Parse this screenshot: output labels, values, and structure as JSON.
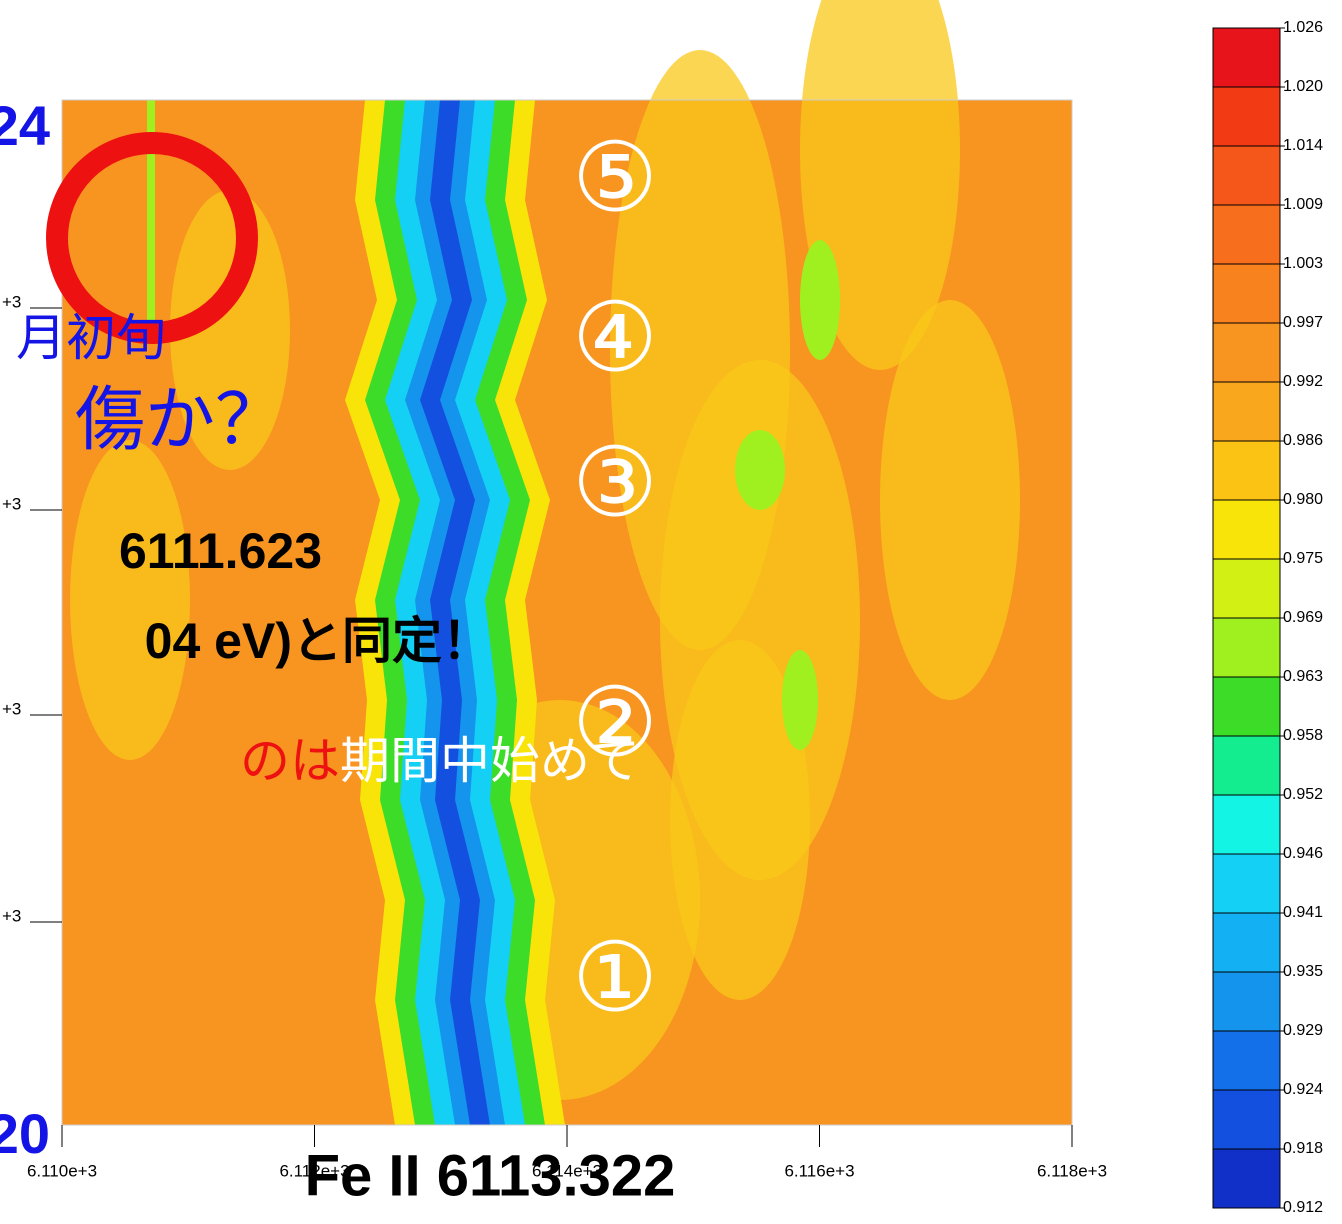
{
  "chart_data": {
    "type": "contour",
    "xlim": [
      6110,
      6118
    ],
    "xticks": [
      {
        "value": 6110,
        "label": "6.110e+3"
      },
      {
        "value": 6112,
        "label": "6.112e+3"
      },
      {
        "value": 6114,
        "label": "6.114e+3"
      },
      {
        "value": 6116,
        "label": "6.116e+3"
      },
      {
        "value": 6118,
        "label": "6.118e+3"
      }
    ],
    "y_tick_labels": [
      "+3",
      "+3",
      "+3",
      "+3"
    ],
    "colorbar": {
      "levels": [
        {
          "value": 1.026,
          "label": "1.026"
        },
        {
          "value": 1.02,
          "label": "1.020"
        },
        {
          "value": 1.014,
          "label": "1.014"
        },
        {
          "value": 1.009,
          "label": "1.009"
        },
        {
          "value": 1.003,
          "label": "1.003"
        },
        {
          "value": 0.997,
          "label": "0.997"
        },
        {
          "value": 0.992,
          "label": "0.992"
        },
        {
          "value": 0.986,
          "label": "0.986"
        },
        {
          "value": 0.98,
          "label": "0.980"
        },
        {
          "value": 0.975,
          "label": "0.975"
        },
        {
          "value": 0.969,
          "label": "0.969"
        },
        {
          "value": 0.963,
          "label": "0.963"
        },
        {
          "value": 0.958,
          "label": "0.958"
        },
        {
          "value": 0.952,
          "label": "0.952"
        },
        {
          "value": 0.946,
          "label": "0.946"
        },
        {
          "value": 0.941,
          "label": "0.941"
        },
        {
          "value": 0.935,
          "label": "0.935"
        },
        {
          "value": 0.929,
          "label": "0.929"
        },
        {
          "value": 0.924,
          "label": "0.924"
        },
        {
          "value": 0.918,
          "label": "0.918"
        },
        {
          "value": 0.912,
          "label": "0.912"
        }
      ],
      "colors": [
        "#e8141c",
        "#f23a14",
        "#f5561a",
        "#f76e1c",
        "#f8821e",
        "#f89420",
        "#f9a81e",
        "#fbc414",
        "#f9e40a",
        "#d2f014",
        "#a0f020",
        "#3cdc28",
        "#14ec90",
        "#14f4e4",
        "#14d0f4",
        "#14b0f4",
        "#1494ec",
        "#1470e8",
        "#1450e0",
        "#1030c8"
      ]
    },
    "annotations": {
      "top_date": "24",
      "month": "月初旬",
      "question": "傷か？",
      "wavelength": "6111.623",
      "identified": "04 eV)と同定！",
      "first_red": "のは",
      "first_white": "期間中始めて",
      "bottom_date": "20",
      "line_label": "Fe II 6113.322",
      "circled": [
        "⑤",
        "④",
        "③",
        "②",
        "①"
      ]
    }
  }
}
